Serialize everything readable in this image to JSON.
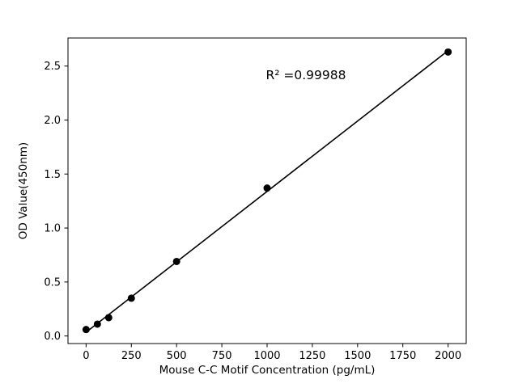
{
  "figure": {
    "background": "#ffffff",
    "frame_color": "#000000"
  },
  "chart_data": {
    "type": "scatter",
    "title": "",
    "xlabel": "Mouse C-C Motif Concentration (pg/mL)",
    "ylabel": "OD Value(450nm)",
    "annotation": "R² =0.99988",
    "x": [
      0,
      62.5,
      125,
      250,
      500,
      1000,
      2000
    ],
    "y": [
      0.06,
      0.11,
      0.17,
      0.35,
      0.69,
      1.37,
      2.63
    ],
    "line": true,
    "line_color": "#000000",
    "marker_color": "#000000",
    "marker_radius": 4.5,
    "xlim": [
      -100,
      2100
    ],
    "ylim": [
      -0.07,
      2.76
    ],
    "xticks": [
      0,
      250,
      500,
      750,
      1000,
      1250,
      1500,
      1750,
      2000
    ],
    "xtick_labels": [
      "0",
      "250",
      "500",
      "750",
      "1000",
      "1250",
      "1500",
      "1750",
      "2000"
    ],
    "yticks": [
      0.0,
      0.5,
      1.0,
      1.5,
      2.0,
      2.5
    ],
    "ytick_labels": [
      "0.0",
      "0.5",
      "1.0",
      "1.5",
      "2.0",
      "2.5"
    ],
    "grid": false,
    "legend": "none",
    "annotation_position_data": [
      1000,
      2.4
    ]
  }
}
